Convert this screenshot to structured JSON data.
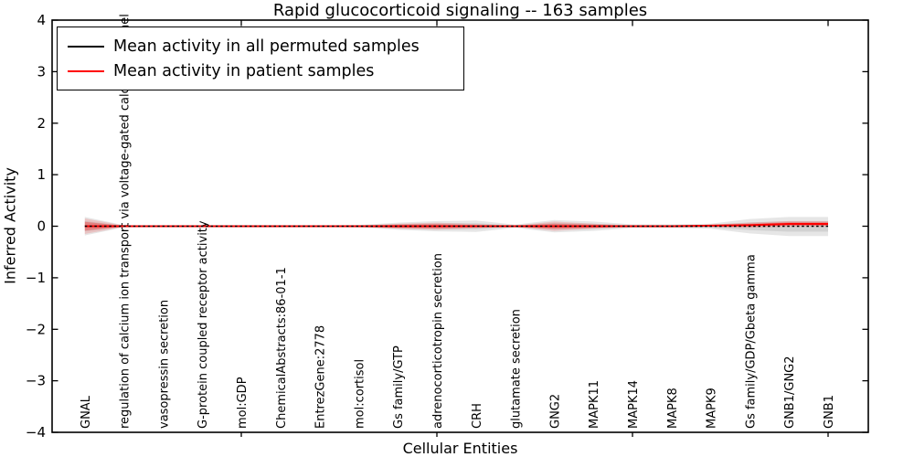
{
  "figure": {
    "title": "Rapid glucocorticoid signaling -- 163 samples",
    "xlabel": "Cellular Entities",
    "ylabel": "Inferred Activity"
  },
  "legend": {
    "position": "upper left",
    "items": [
      {
        "label": "Mean activity in all permuted samples",
        "color": "#000000"
      },
      {
        "label": "Mean activity in patient samples",
        "color": "#ff0000"
      }
    ]
  },
  "chart_data": {
    "type": "line",
    "title": "Rapid glucocorticoid signaling -- 163 samples",
    "xlabel": "Cellular Entities",
    "ylabel": "Inferred Activity",
    "ylim": [
      -4,
      4
    ],
    "yticks": [
      4,
      3,
      2,
      1,
      0,
      -1,
      -2,
      -3,
      -4
    ],
    "ytick_labels": [
      "4",
      "3",
      "2",
      "1",
      "0",
      "−1",
      "−2",
      "−3",
      "−4"
    ],
    "grid": false,
    "legend_position": "upper left",
    "xtick_indices": [
      4,
      9,
      14,
      19
    ],
    "categories": [
      "GNAL",
      "regulation of calcium ion transport via voltage-gated calcium channel",
      "vasopressin secretion",
      "G-protein coupled receptor activity",
      "mol:GDP",
      "ChemicalAbstracts:86-01-1",
      "EntrezGene:2778",
      "mol:cortisol",
      "Gs family/GTP",
      "adrenocorticotropin secretion",
      "CRH",
      "glutamate secretion",
      "GNG2",
      "MAPK11",
      "MAPK14",
      "MAPK8",
      "MAPK9",
      "Gs family/GDP/Gbeta gamma",
      "GNB1/GNG2",
      "GNB1"
    ],
    "series": [
      {
        "name": "Mean activity in all permuted samples",
        "color": "#000000",
        "style": "dashed",
        "values": [
          0,
          0,
          0,
          0,
          0,
          0,
          0,
          0,
          0,
          0,
          0,
          0,
          0,
          0,
          0,
          0,
          0,
          0,
          0,
          0
        ]
      },
      {
        "name": "Mean activity in patient samples",
        "color": "#ff0000",
        "style": "solid",
        "values": [
          0,
          0,
          0,
          0,
          0,
          0,
          0,
          0,
          0,
          0,
          0,
          0,
          0,
          0,
          0,
          0,
          0.01,
          0.02,
          0.045,
          0.045
        ]
      }
    ],
    "bands": [
      {
        "name": "permuted-range",
        "color": "#808080",
        "upper": [
          0.18,
          0.02,
          0.015,
          0.015,
          0.015,
          0.015,
          0.015,
          0.025,
          0.07,
          0.1,
          0.11,
          0.03,
          0.12,
          0.09,
          0.035,
          0.035,
          0.05,
          0.14,
          0.18,
          0.18
        ],
        "lower": [
          -0.18,
          -0.02,
          -0.015,
          -0.015,
          -0.015,
          -0.015,
          -0.015,
          -0.025,
          -0.07,
          -0.1,
          -0.11,
          -0.03,
          -0.12,
          -0.09,
          -0.035,
          -0.035,
          -0.05,
          -0.14,
          -0.19,
          -0.19
        ]
      },
      {
        "name": "patient-range",
        "color": "#ff0000",
        "upper": [
          0.15,
          0.012,
          0.01,
          0.01,
          0.01,
          0.01,
          0.01,
          0.015,
          0.05,
          0.07,
          0.04,
          0.015,
          0.09,
          0.05,
          0.015,
          0.015,
          0.03,
          0.07,
          0.1,
          0.1
        ],
        "lower": [
          -0.15,
          -0.012,
          -0.01,
          -0.01,
          -0.01,
          -0.01,
          -0.01,
          -0.015,
          -0.05,
          -0.07,
          -0.04,
          -0.015,
          -0.09,
          -0.05,
          -0.015,
          -0.015,
          -0.02,
          -0.03,
          -0.01,
          -0.01
        ]
      }
    ]
  }
}
